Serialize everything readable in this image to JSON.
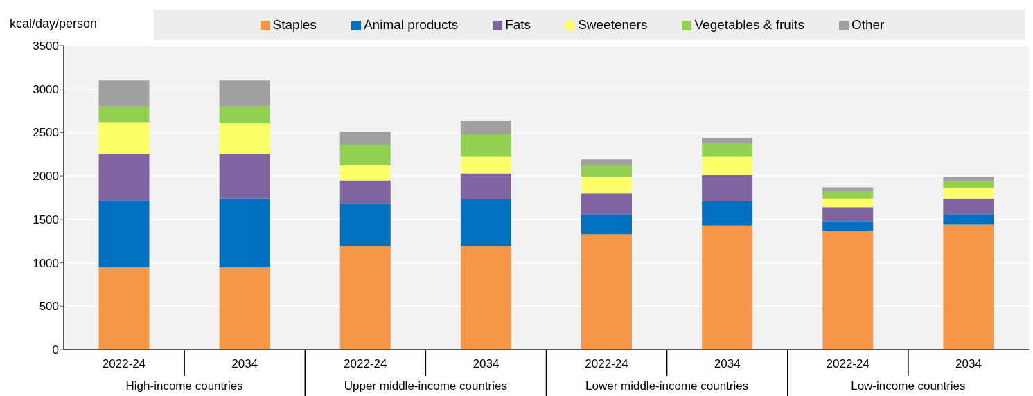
{
  "chart_data": {
    "type": "bar",
    "stacked": true,
    "ylabel": "kcal/day/person",
    "categories": [
      "2022-24",
      "2034",
      "2022-24",
      "2034",
      "2022-24",
      "2034",
      "2022-24",
      "2034"
    ],
    "annotations": [
      "High-income countries",
      "Upper middle-income countries",
      "Lower middle-income countries",
      "Low-income countries"
    ],
    "series": [
      {
        "name": "Staples",
        "color": "#f79646",
        "values": [
          950,
          950,
          1190,
          1190,
          1330,
          1430,
          1370,
          1440
        ]
      },
      {
        "name": "Animal products",
        "color": "#0070c0",
        "values": [
          770,
          790,
          490,
          540,
          230,
          280,
          110,
          120
        ]
      },
      {
        "name": "Fats",
        "color": "#8064a2",
        "values": [
          530,
          510,
          270,
          300,
          240,
          300,
          160,
          180
        ]
      },
      {
        "name": "Sweeteners",
        "color": "#ffff66",
        "values": [
          370,
          360,
          170,
          190,
          190,
          210,
          100,
          120
        ]
      },
      {
        "name": "Vegetables & fruits",
        "color": "#92d050",
        "values": [
          180,
          190,
          240,
          260,
          130,
          150,
          80,
          80
        ]
      },
      {
        "name": "Other",
        "color": "#a0a0a0",
        "values": [
          300,
          300,
          150,
          150,
          70,
          70,
          50,
          50
        ]
      }
    ],
    "ylim": [
      0,
      3500
    ],
    "yticks": [
      0,
      500,
      1000,
      1500,
      2000,
      2500,
      3000,
      3500
    ],
    "grid": "y",
    "legend": "top"
  }
}
